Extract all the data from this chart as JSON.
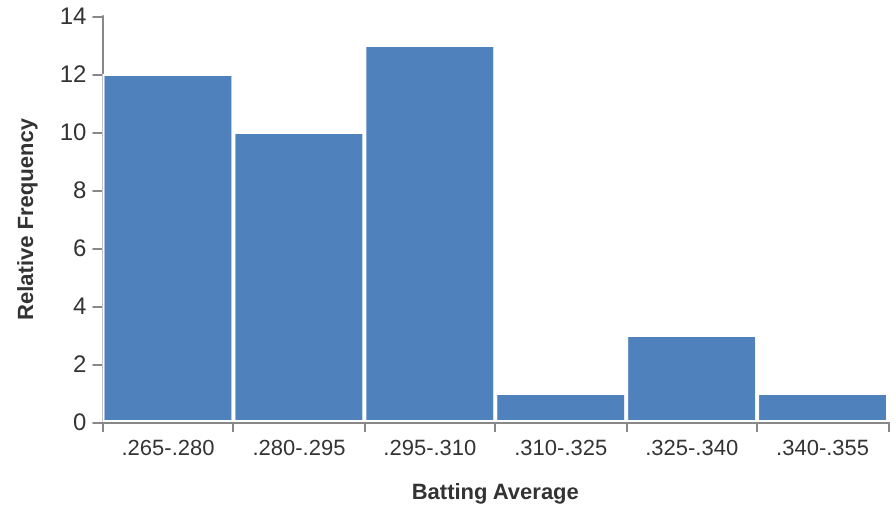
{
  "chart_data": {
    "type": "bar",
    "xlabel": "Batting Average",
    "ylabel": "Relative Frequency",
    "categories": [
      ".265-.280",
      ".280-.295",
      ".295-.310",
      ".310-.325",
      ".325-.340",
      ".340-.355"
    ],
    "values": [
      12,
      10,
      13,
      1,
      3,
      1
    ],
    "color": "#4f81bd",
    "ylim": [
      0,
      14
    ],
    "yticks": [
      0,
      2,
      4,
      6,
      8,
      10,
      12,
      14
    ],
    "grid": false
  }
}
